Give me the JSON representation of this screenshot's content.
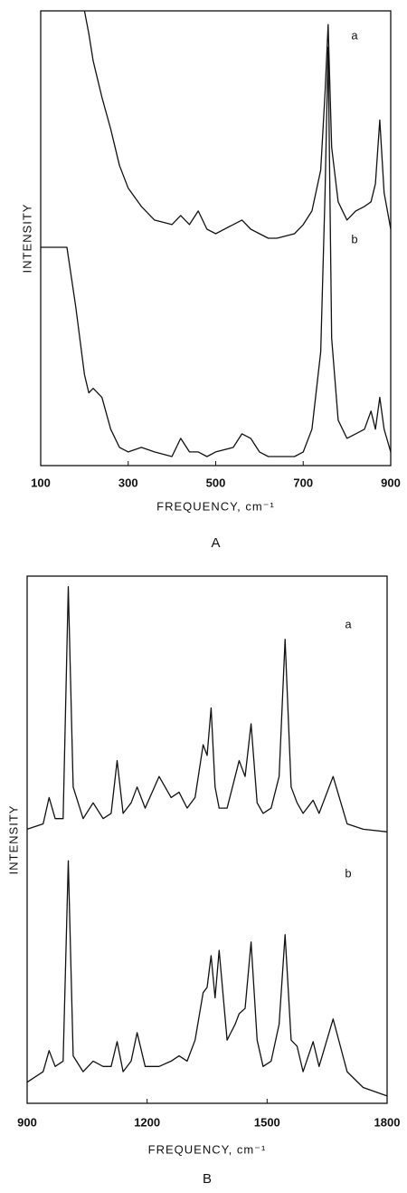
{
  "chart_data": [
    {
      "type": "line",
      "title": "A",
      "x_label": "FREQUENCY, cm⁻¹",
      "y_label": "INTENSITY",
      "x": [
        100,
        160,
        180,
        200,
        210,
        220,
        240,
        260,
        280,
        300,
        330,
        360,
        400,
        420,
        440,
        460,
        480,
        500,
        540,
        560,
        580,
        600,
        620,
        640,
        680,
        700,
        720,
        740,
        750,
        757,
        765,
        780,
        800,
        820,
        840,
        855,
        865,
        875,
        885,
        900
      ],
      "xlim": [
        100,
        900
      ],
      "xticks": [
        100,
        300,
        500,
        700,
        900
      ],
      "ylim": [
        0,
        100
      ],
      "series": [
        {
          "name": "a",
          "color": "#111111",
          "values": [
            null,
            null,
            null,
            100,
            95,
            89,
            81,
            74,
            66,
            61,
            57,
            54,
            53,
            55,
            53,
            56,
            52,
            51,
            53,
            54,
            52,
            51,
            50,
            50,
            51,
            53,
            56,
            65,
            82,
            97,
            70,
            58,
            54,
            56,
            57,
            58,
            62,
            76,
            60,
            52
          ]
        },
        {
          "name": "b",
          "color": "#111111",
          "values": [
            48,
            48,
            35,
            20,
            16,
            17,
            15,
            8,
            4,
            3,
            4,
            3,
            2,
            6,
            3,
            3,
            2,
            3,
            4,
            7,
            6,
            3,
            2,
            2,
            2,
            3,
            8,
            25,
            60,
            92,
            28,
            10,
            6,
            7,
            8,
            12,
            8,
            15,
            8,
            3
          ]
        }
      ]
    },
    {
      "type": "line",
      "title": "B",
      "x_label": "FREQUENCY, cm⁻¹",
      "y_label": "INTENSITY",
      "x": [
        900,
        940,
        955,
        970,
        990,
        1003,
        1015,
        1040,
        1065,
        1090,
        1110,
        1125,
        1140,
        1160,
        1175,
        1195,
        1230,
        1260,
        1280,
        1300,
        1320,
        1340,
        1350,
        1360,
        1370,
        1380,
        1400,
        1420,
        1430,
        1445,
        1460,
        1475,
        1490,
        1510,
        1530,
        1545,
        1560,
        1575,
        1590,
        1615,
        1630,
        1665,
        1700,
        1740,
        1800
      ],
      "xlim": [
        900,
        1800
      ],
      "xticks": [
        900,
        1200,
        1500,
        1800
      ],
      "ylim": [
        0,
        100
      ],
      "series": [
        {
          "name": "a",
          "color": "#111111",
          "values": [
            52,
            53,
            58,
            54,
            54,
            98,
            60,
            54,
            57,
            54,
            55,
            65,
            55,
            57,
            60,
            56,
            62,
            58,
            59,
            56,
            58,
            68,
            66,
            75,
            60,
            56,
            56,
            62,
            65,
            62,
            72,
            57,
            55,
            56,
            62,
            88,
            60,
            57,
            55,
            57.5,
            55,
            62,
            53,
            52,
            51.5
          ]
        },
        {
          "name": "b",
          "color": "#111111",
          "values": [
            4,
            6,
            10,
            7,
            8,
            46,
            9,
            6,
            8,
            7,
            7,
            11.7,
            6,
            8,
            13.4,
            7,
            7,
            8,
            9,
            8,
            12,
            21,
            22,
            28,
            20,
            29,
            12,
            15,
            17,
            18,
            30.6,
            12,
            7,
            8,
            15,
            32,
            12,
            10.8,
            6,
            11.7,
            7,
            16,
            6,
            3,
            1.4
          ]
        }
      ]
    }
  ]
}
